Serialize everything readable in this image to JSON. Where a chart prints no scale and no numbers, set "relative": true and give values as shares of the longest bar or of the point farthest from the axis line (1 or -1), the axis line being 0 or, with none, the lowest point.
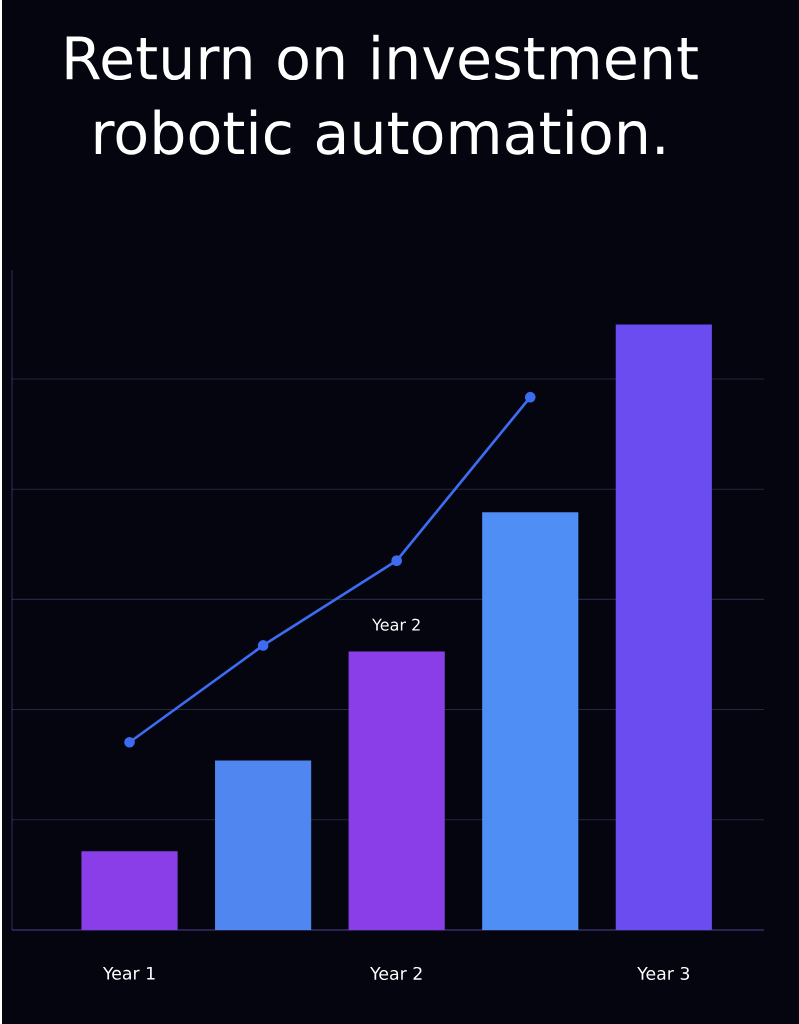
{
  "chart_data": {
    "type": "bar",
    "title": "Return on investment robotic automation.",
    "relative": true,
    "categories": [
      "Year 1",
      null,
      "Year 2",
      null,
      "Year 3"
    ],
    "series": [
      {
        "values": [
          0.13,
          0.28,
          0.46,
          0.69,
          1.0
        ],
        "colors": [
          "#8a3ee8",
          "#4f86f0",
          "#8a3ee8",
          "#4f8ef5",
          "#6a4cf0"
        ]
      },
      {
        "type": "line",
        "values": [
          0.31,
          0.47,
          0.61,
          0.88,
          null
        ],
        "color": "#3d6cf0",
        "marker": "circle",
        "line_style": "solid"
      }
    ],
    "annotations": [
      {
        "text": "Year 2",
        "x": "Year 2",
        "y": 0.46
      }
    ],
    "grid": "y"
  }
}
